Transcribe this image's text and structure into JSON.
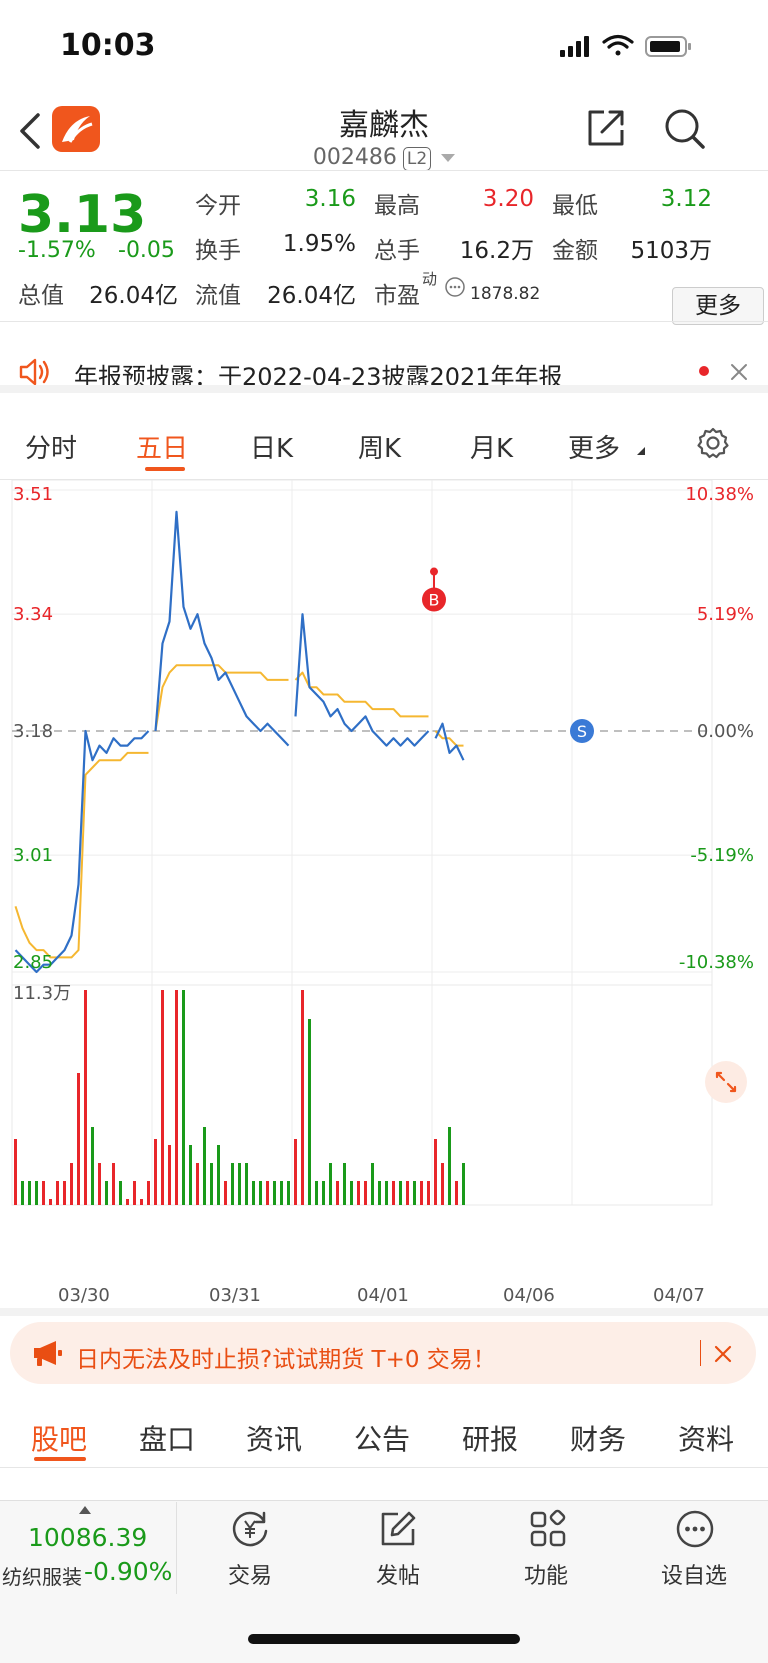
{
  "status_bar": {
    "time": "10:03"
  },
  "header": {
    "title": "嘉麟杰",
    "code": "002486",
    "level_badge": "L2"
  },
  "quote": {
    "price": "3.13",
    "change_pct": "-1.57%",
    "change_amt": "-0.05",
    "rows": [
      [
        {
          "label": "今开",
          "value": "3.16",
          "color": "green"
        },
        {
          "label": "最高",
          "value": "3.20",
          "color": "red"
        },
        {
          "label": "最低",
          "value": "3.12",
          "color": "green"
        }
      ],
      [
        {
          "label": "换手",
          "value": "1.95%",
          "color": "black"
        },
        {
          "label": "总手",
          "value": "16.2万",
          "color": "black"
        },
        {
          "label": "金额",
          "value": "5103万",
          "color": "black"
        }
      ]
    ],
    "total_value_label": "总值",
    "total_value": "26.04亿",
    "float_value_label": "流值",
    "float_value": "26.04亿",
    "pe_label": "市盈",
    "pe_superscript": "动",
    "pe_value": "1878.82",
    "more_label": "更多"
  },
  "notice": {
    "text": "年报预披露：于2022-04-23披露2021年年报"
  },
  "period_tabs": [
    {
      "label": "分时",
      "active": false
    },
    {
      "label": "五日",
      "active": true
    },
    {
      "label": "日K",
      "active": false
    },
    {
      "label": "周K",
      "active": false
    },
    {
      "label": "月K",
      "active": false
    },
    {
      "label": "更多",
      "active": false
    }
  ],
  "chart_data": {
    "type": "line",
    "title": "",
    "y_price_ticks": [
      "3.51",
      "3.34",
      "3.18",
      "3.01",
      "2.85"
    ],
    "y_pct_ticks": [
      "10.38%",
      "5.19%",
      "0.00%",
      "-5.19%",
      "-10.38%"
    ],
    "ylim": [
      2.85,
      3.51
    ],
    "prev_close": 3.18,
    "x_dates": [
      "03/30",
      "03/31",
      "04/01",
      "04/06",
      "04/07"
    ],
    "volume_max_label": "11.3万",
    "markers": [
      {
        "label": "B",
        "price": 3.36
      },
      {
        "label": "S",
        "price": 3.18
      }
    ],
    "series": [
      {
        "name": "price",
        "color": "#2f6fc6",
        "day_points": [
          [
            2.88,
            2.87,
            2.86,
            2.85,
            2.86,
            2.86,
            2.87,
            2.88,
            2.9,
            2.97,
            3.18,
            3.14,
            3.16,
            3.15,
            3.17,
            3.16,
            3.16,
            3.17,
            3.17,
            3.18
          ],
          [
            3.18,
            3.3,
            3.33,
            3.48,
            3.35,
            3.32,
            3.34,
            3.3,
            3.28,
            3.25,
            3.26,
            3.24,
            3.22,
            3.2,
            3.19,
            3.18,
            3.19,
            3.18,
            3.17,
            3.16
          ],
          [
            3.2,
            3.34,
            3.24,
            3.23,
            3.22,
            3.2,
            3.21,
            3.19,
            3.18,
            3.19,
            3.2,
            3.18,
            3.17,
            3.16,
            3.17,
            3.16,
            3.17,
            3.16,
            3.17,
            3.18
          ],
          [
            3.17,
            3.19,
            3.15,
            3.16,
            3.14
          ]
        ]
      },
      {
        "name": "avg",
        "color": "#f5b731",
        "day_points": [
          [
            2.94,
            2.91,
            2.89,
            2.88,
            2.88,
            2.87,
            2.87,
            2.87,
            2.87,
            2.88,
            3.12,
            3.13,
            3.14,
            3.14,
            3.14,
            3.14,
            3.15,
            3.15,
            3.15,
            3.15
          ],
          [
            3.18,
            3.24,
            3.26,
            3.27,
            3.27,
            3.27,
            3.27,
            3.27,
            3.27,
            3.27,
            3.26,
            3.26,
            3.26,
            3.26,
            3.26,
            3.26,
            3.25,
            3.25,
            3.25,
            3.25
          ],
          [
            3.25,
            3.26,
            3.24,
            3.24,
            3.23,
            3.23,
            3.23,
            3.22,
            3.22,
            3.22,
            3.22,
            3.21,
            3.21,
            3.21,
            3.21,
            3.2,
            3.2,
            3.2,
            3.2,
            3.2
          ],
          [
            3.18,
            3.17,
            3.17,
            3.16,
            3.16
          ]
        ]
      }
    ]
  },
  "promo": {
    "text": "日内无法及时止损?试试期货 T+0 交易！"
  },
  "section_tabs": [
    {
      "label": "股吧",
      "active": true
    },
    {
      "label": "盘口",
      "active": false
    },
    {
      "label": "资讯",
      "active": false
    },
    {
      "label": "公告",
      "active": false
    },
    {
      "label": "研报",
      "active": false
    },
    {
      "label": "财务",
      "active": false
    },
    {
      "label": "资料",
      "active": false
    }
  ],
  "toolbar": {
    "index_value": "10086.39",
    "index_name": "纺织服装",
    "index_change": "-0.90%",
    "items": [
      {
        "label": "交易",
        "icon": "yen-refresh-icon"
      },
      {
        "label": "发帖",
        "icon": "edit-icon"
      },
      {
        "label": "功能",
        "icon": "grid-icon"
      },
      {
        "label": "设自选",
        "icon": "more-circle-icon"
      }
    ]
  }
}
